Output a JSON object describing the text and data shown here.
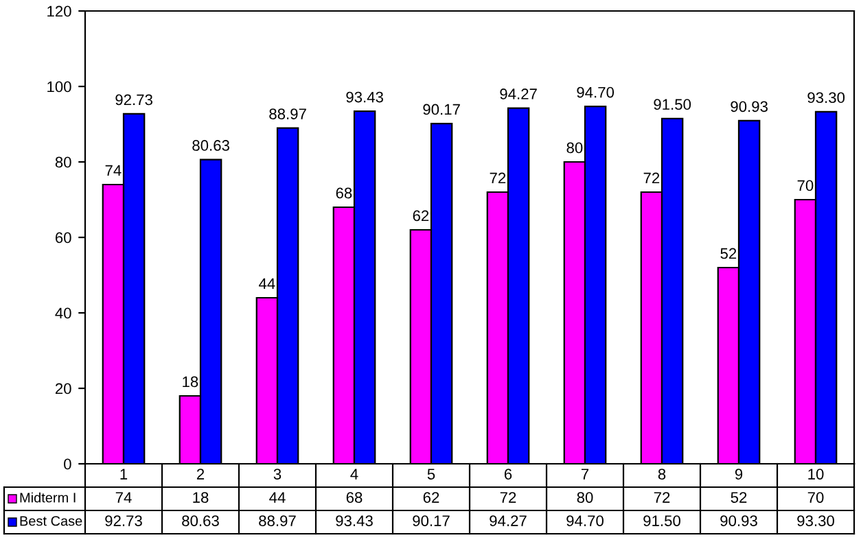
{
  "chart_data": {
    "type": "bar",
    "categories": [
      "1",
      "2",
      "3",
      "4",
      "5",
      "6",
      "7",
      "8",
      "9",
      "10"
    ],
    "series": [
      {
        "name": "Midterm I",
        "color": "#ff00ff",
        "values": [
          74,
          18,
          44,
          68,
          62,
          72,
          80,
          72,
          52,
          70
        ],
        "value_labels": [
          "74",
          "18",
          "44",
          "68",
          "62",
          "72",
          "80",
          "72",
          "52",
          "70"
        ]
      },
      {
        "name": "Best Case",
        "color": "#0000ff",
        "values": [
          92.73,
          80.63,
          88.97,
          93.43,
          90.17,
          94.27,
          94.7,
          91.5,
          90.93,
          93.3
        ],
        "value_labels": [
          "92.73",
          "80.63",
          "88.97",
          "93.43",
          "90.17",
          "94.27",
          "94.70",
          "91.50",
          "90.93",
          "93.30"
        ]
      }
    ],
    "ylim": [
      0,
      120
    ],
    "yticks": [
      0,
      20,
      40,
      60,
      80,
      100,
      120
    ],
    "grid": false,
    "legend": "bottom"
  }
}
